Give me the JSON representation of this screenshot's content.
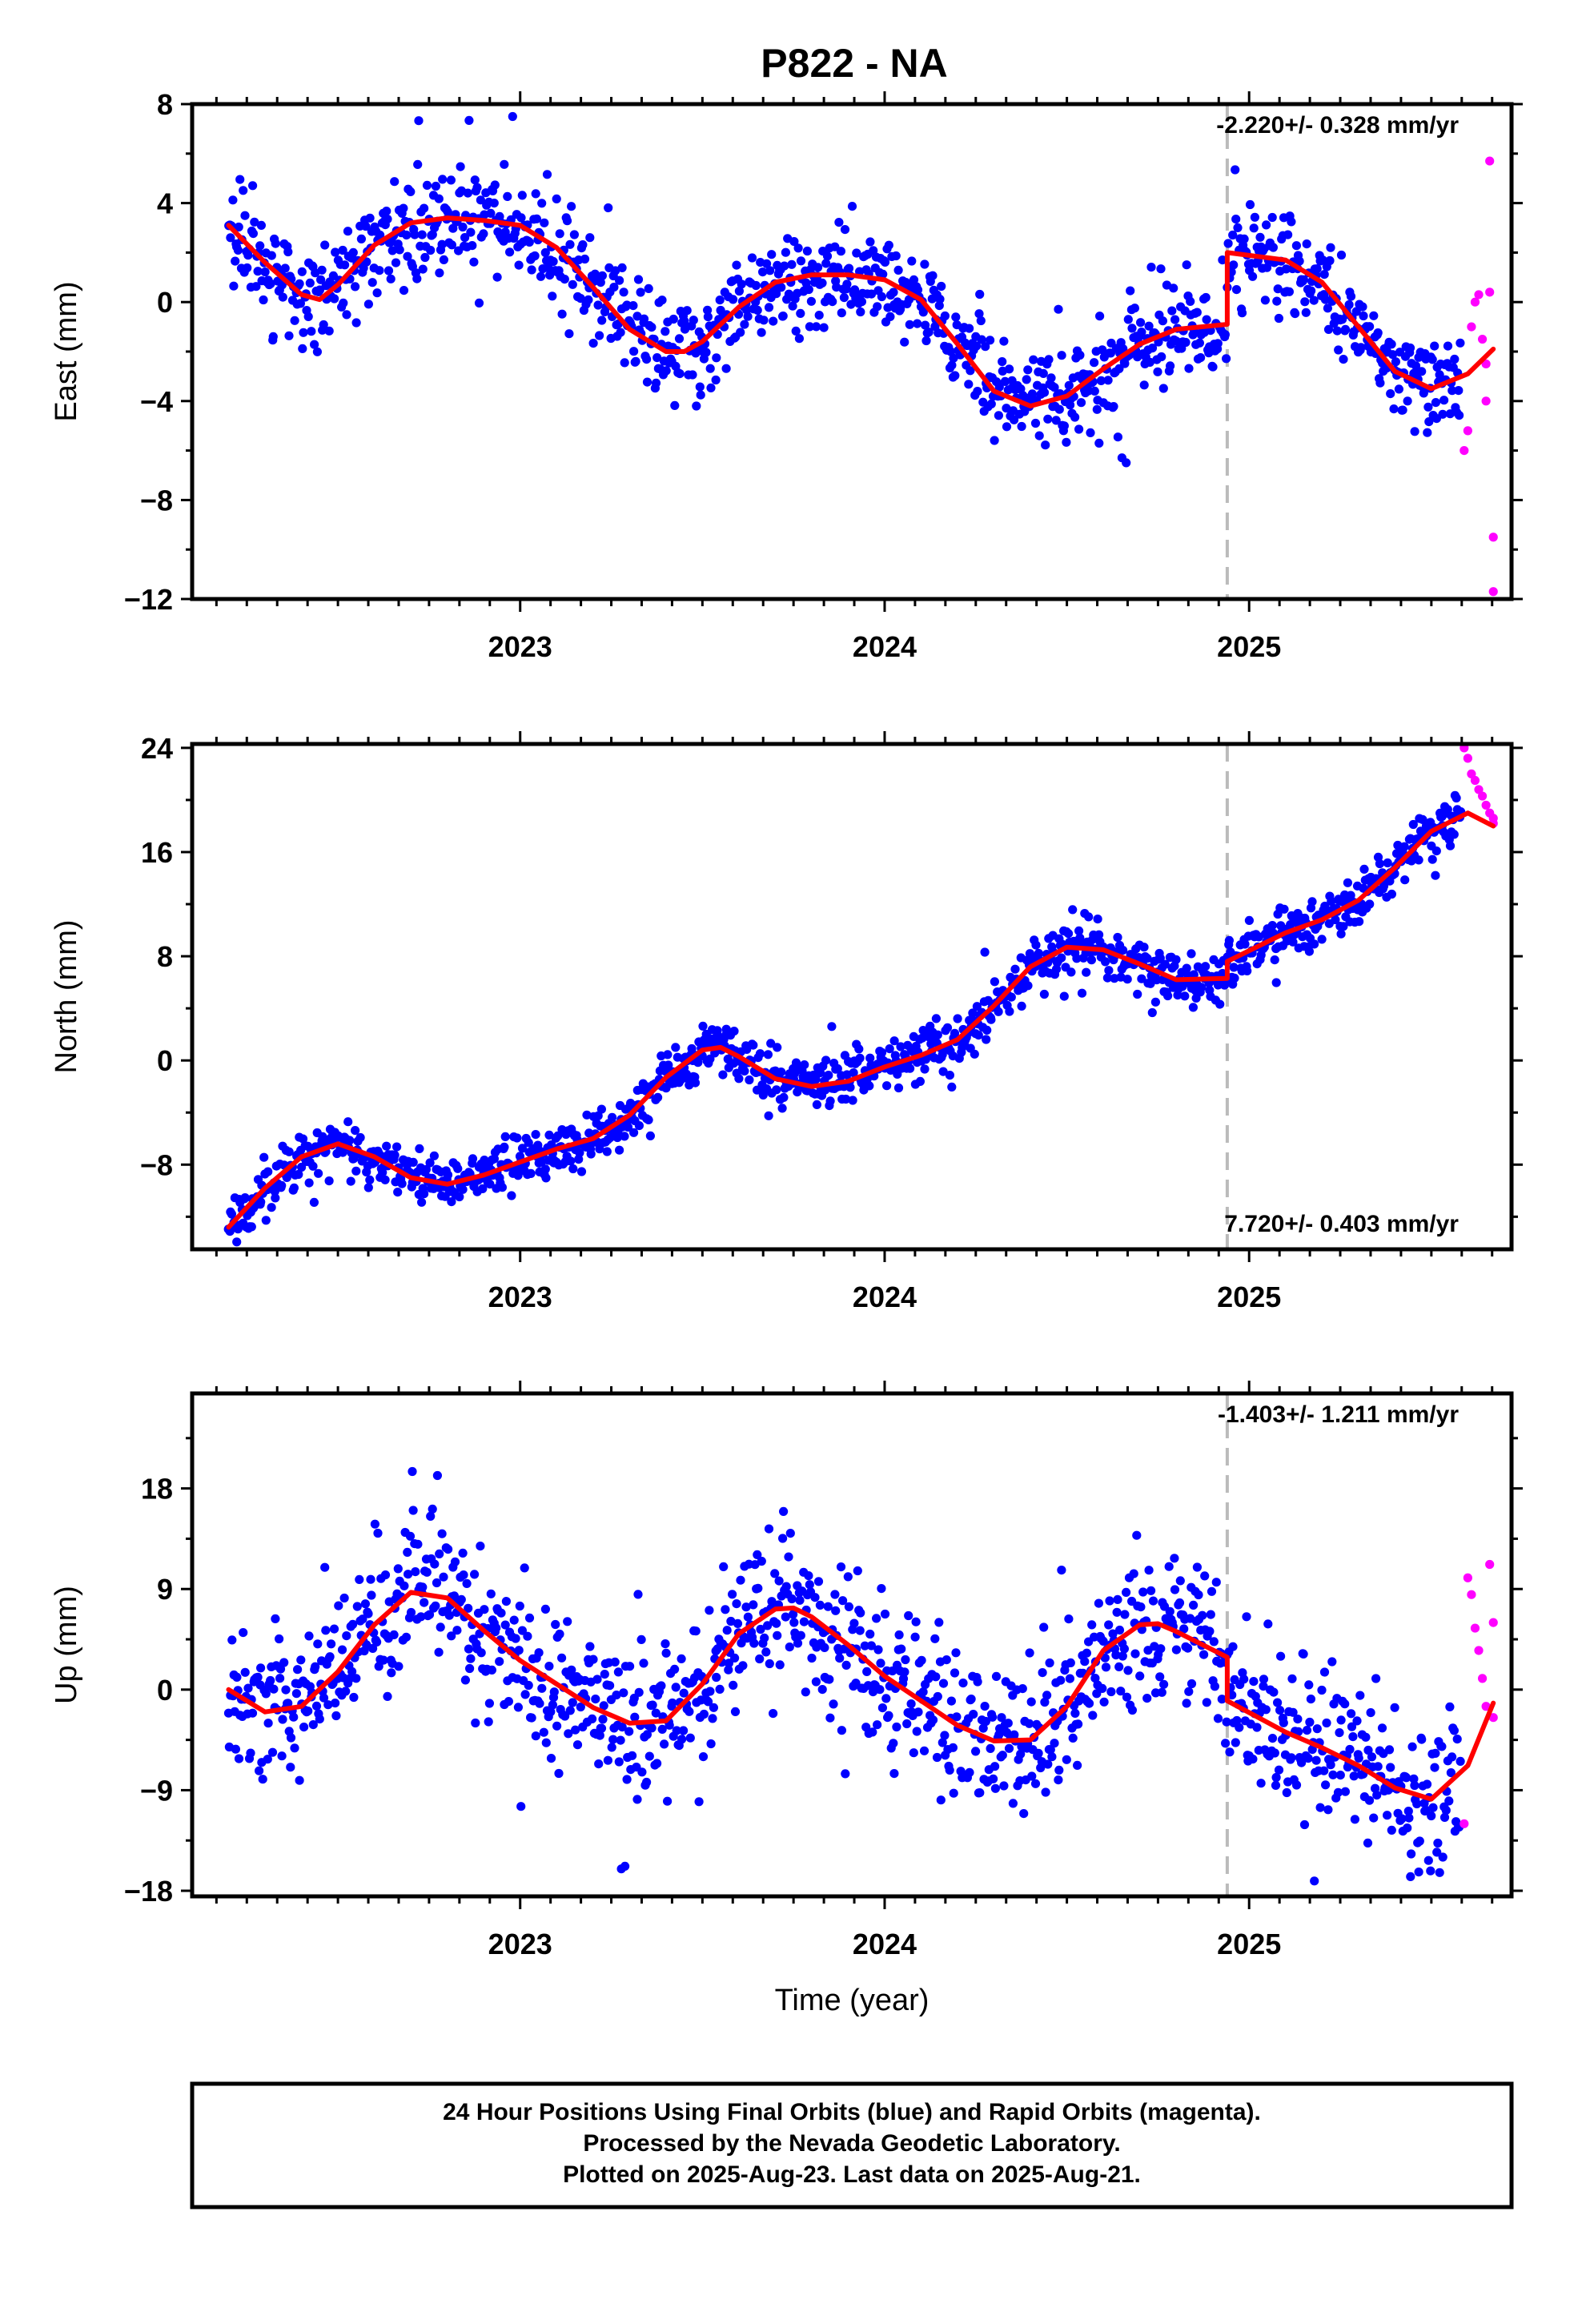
{
  "title": "P822 - NA",
  "colors": {
    "final": "#0000ff",
    "rapid": "#ff00ff",
    "model": "#ff0000",
    "break": "#bbbbbb",
    "frame": "#000000"
  },
  "footer": {
    "line1": "24 Hour Positions Using Final Orbits (blue) and Rapid Orbits (magenta).",
    "line2": "Processed by the Nevada Geodetic Laboratory.",
    "line3": "Plotted on 2025-Aug-23. Last data on 2025-Aug-21."
  },
  "chart_data": [
    {
      "type": "scatter",
      "title": "P822 - NA",
      "ylabel": "East (mm)",
      "xlabel": "",
      "rate_label": "-2.220+/- 0.328 mm/yr",
      "rate_position": "top-right",
      "xlim": [
        2022.1,
        2025.72
      ],
      "ylim": [
        -12,
        8
      ],
      "yticks": [
        8,
        4,
        0,
        -4,
        -8,
        -12
      ],
      "ytick_labels": [
        "8",
        "4",
        "0",
        "−4",
        "−8",
        "−12"
      ],
      "xticks": [
        2023,
        2024,
        2025
      ],
      "xtick_labels": [
        "2023",
        "2024",
        "2025"
      ],
      "break_x": 2024.94,
      "grid": false,
      "series": [
        {
          "role": "final-orbits",
          "color": "#0000ff",
          "kind": "points",
          "count": 1180,
          "x_range": [
            2022.2,
            2025.58
          ]
        },
        {
          "role": "rapid-orbits",
          "color": "#ff00ff",
          "kind": "points",
          "x": [
            2025.59,
            2025.6,
            2025.61,
            2025.62,
            2025.63,
            2025.64,
            2025.65,
            2025.65,
            2025.66,
            2025.66,
            2025.67,
            2025.67
          ],
          "y": [
            -6.0,
            -5.2,
            -1.0,
            0.0,
            0.3,
            -1.5,
            -2.5,
            -4.0,
            5.7,
            0.4,
            -9.5,
            -11.7
          ]
        },
        {
          "role": "model-fit",
          "color": "#ff0000",
          "kind": "line",
          "x": [
            2022.2,
            2022.3,
            2022.4,
            2022.45,
            2022.5,
            2022.6,
            2022.7,
            2022.8,
            2022.9,
            2023.0,
            2023.1,
            2023.2,
            2023.3,
            2023.4,
            2023.45,
            2023.5,
            2023.6,
            2023.7,
            2023.8,
            2023.9,
            2024.0,
            2024.1,
            2024.2,
            2024.3,
            2024.4,
            2024.5,
            2024.6,
            2024.7,
            2024.8,
            2024.94,
            2024.94,
            2025.1,
            2025.2,
            2025.3,
            2025.4,
            2025.5,
            2025.6,
            2025.67
          ],
          "y": [
            3.1,
            1.6,
            0.3,
            0.1,
            0.7,
            2.3,
            3.2,
            3.4,
            3.3,
            3.1,
            2.2,
            0.6,
            -1.1,
            -2.0,
            -2.0,
            -1.6,
            -0.2,
            0.8,
            1.1,
            1.1,
            0.9,
            0.1,
            -1.7,
            -3.6,
            -4.2,
            -3.8,
            -2.7,
            -1.7,
            -1.1,
            -0.9,
            2.0,
            1.7,
            0.8,
            -1.0,
            -2.8,
            -3.5,
            -2.9,
            -1.9
          ]
        }
      ]
    },
    {
      "type": "scatter",
      "ylabel": "North (mm)",
      "xlabel": "",
      "rate_label": "7.720+/- 0.403 mm/yr",
      "rate_position": "bottom-right",
      "xlim": [
        2022.1,
        2025.72
      ],
      "ylim": [
        -14.5,
        24.3
      ],
      "yticks": [
        24,
        16,
        8,
        0,
        -8
      ],
      "ytick_labels": [
        "24",
        "16",
        "8",
        "0",
        "−8"
      ],
      "xticks": [
        2023,
        2024,
        2025
      ],
      "xtick_labels": [
        "2023",
        "2024",
        "2025"
      ],
      "break_x": 2024.94,
      "grid": false,
      "series": [
        {
          "role": "final-orbits",
          "color": "#0000ff",
          "kind": "points",
          "count": 1180,
          "x_range": [
            2022.2,
            2025.58
          ]
        },
        {
          "role": "rapid-orbits",
          "color": "#ff00ff",
          "kind": "points",
          "x": [
            2025.59,
            2025.6,
            2025.61,
            2025.62,
            2025.63,
            2025.64,
            2025.65,
            2025.66,
            2025.67,
            2025.67
          ],
          "y": [
            24.0,
            23.2,
            22.0,
            21.5,
            20.8,
            20.3,
            19.6,
            19.0,
            18.6,
            18.2
          ]
        },
        {
          "role": "model-fit",
          "color": "#ff0000",
          "kind": "line",
          "x": [
            2022.2,
            2022.3,
            2022.4,
            2022.5,
            2022.6,
            2022.7,
            2022.8,
            2022.9,
            2023.0,
            2023.1,
            2023.2,
            2023.3,
            2023.4,
            2023.5,
            2023.55,
            2023.6,
            2023.7,
            2023.8,
            2023.9,
            2024.0,
            2024.1,
            2024.2,
            2024.3,
            2024.4,
            2024.5,
            2024.6,
            2024.7,
            2024.8,
            2024.94,
            2024.94,
            2025.1,
            2025.2,
            2025.3,
            2025.4,
            2025.5,
            2025.6,
            2025.67
          ],
          "y": [
            -12.8,
            -9.8,
            -7.4,
            -6.4,
            -7.4,
            -9.0,
            -9.5,
            -8.8,
            -7.8,
            -6.8,
            -6.0,
            -4.2,
            -1.3,
            0.8,
            1.0,
            0.3,
            -1.4,
            -2.0,
            -1.6,
            -0.5,
            0.4,
            1.6,
            4.2,
            7.2,
            8.7,
            8.5,
            7.4,
            6.2,
            6.3,
            7.6,
            9.8,
            10.8,
            12.3,
            14.8,
            17.6,
            19.0,
            18.0
          ]
        }
      ]
    },
    {
      "type": "scatter",
      "ylabel": "Up (mm)",
      "xlabel": "Time (year)",
      "rate_label": "-1.403+/- 1.211 mm/yr",
      "rate_position": "top-right",
      "xlim": [
        2022.1,
        2025.72
      ],
      "ylim": [
        -18.5,
        26.5
      ],
      "yticks": [
        18,
        9,
        0,
        -9,
        -18
      ],
      "ytick_labels": [
        "18",
        "9",
        "0",
        "−9",
        "−18"
      ],
      "xticks": [
        2023,
        2024,
        2025
      ],
      "xtick_labels": [
        "2023",
        "2024",
        "2025"
      ],
      "break_x": 2024.94,
      "grid": false,
      "series": [
        {
          "role": "final-orbits",
          "color": "#0000ff",
          "kind": "points",
          "count": 1180,
          "x_range": [
            2022.2,
            2025.58
          ]
        },
        {
          "role": "rapid-orbits",
          "color": "#ff00ff",
          "kind": "points",
          "x": [
            2025.59,
            2025.6,
            2025.61,
            2025.62,
            2025.63,
            2025.64,
            2025.65,
            2025.66,
            2025.67,
            2025.67
          ],
          "y": [
            -12.0,
            10.0,
            8.5,
            5.5,
            3.5,
            1.0,
            -1.5,
            11.2,
            6.0,
            -2.5
          ]
        },
        {
          "role": "model-fit",
          "color": "#ff0000",
          "kind": "line",
          "x": [
            2022.2,
            2022.3,
            2022.4,
            2022.5,
            2022.6,
            2022.7,
            2022.8,
            2022.9,
            2023.0,
            2023.1,
            2023.2,
            2023.3,
            2023.4,
            2023.5,
            2023.6,
            2023.7,
            2023.75,
            2023.8,
            2023.9,
            2024.0,
            2024.1,
            2024.2,
            2024.3,
            2024.4,
            2024.5,
            2024.6,
            2024.7,
            2024.75,
            2024.8,
            2024.94,
            2024.94,
            2025.1,
            2025.2,
            2025.3,
            2025.4,
            2025.5,
            2025.6,
            2025.67
          ],
          "y": [
            0.0,
            -2.0,
            -1.5,
            1.6,
            5.8,
            8.7,
            8.2,
            5.3,
            2.6,
            0.5,
            -1.6,
            -3.0,
            -2.8,
            0.5,
            5.0,
            7.2,
            7.3,
            6.5,
            4.0,
            1.2,
            -1.0,
            -3.2,
            -4.6,
            -4.5,
            -1.5,
            3.5,
            5.8,
            5.9,
            5.2,
            2.9,
            -1.0,
            -3.8,
            -5.2,
            -6.8,
            -8.8,
            -9.8,
            -6.8,
            -1.2
          ]
        }
      ]
    }
  ]
}
